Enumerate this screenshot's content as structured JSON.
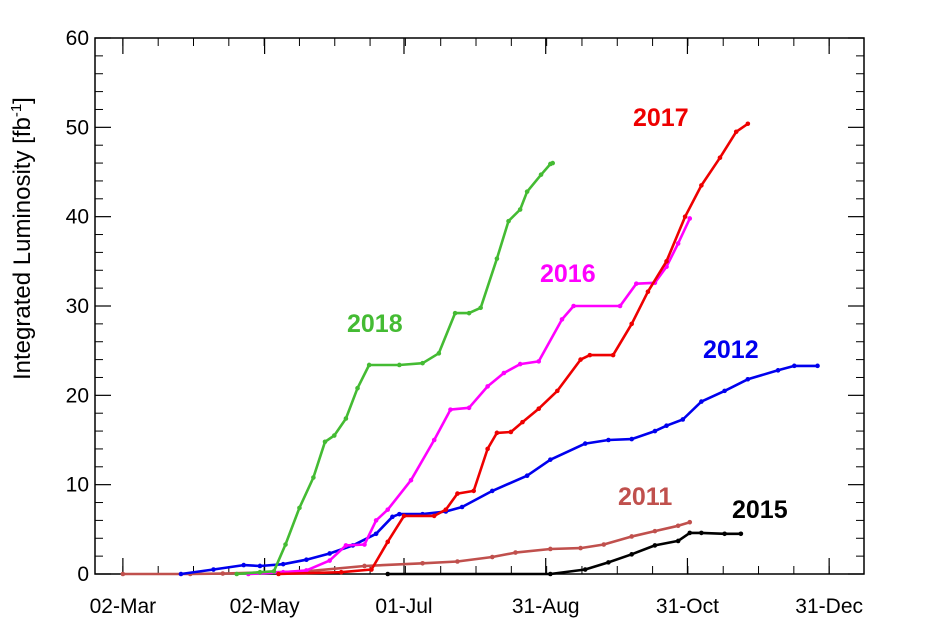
{
  "chart_data": {
    "type": "line",
    "title": "",
    "xlabel": "",
    "ylabel": "Integrated Luminosity [fb",
    "ylabel_sup": "-1",
    "ylabel_close": "]",
    "x_unit": "day of year",
    "xlim": [
      49,
      380
    ],
    "ylim": [
      0,
      60
    ],
    "y_ticks": [
      0,
      10,
      20,
      30,
      40,
      50,
      60
    ],
    "x_ticks": [
      {
        "day": 61,
        "label": "02-Mar"
      },
      {
        "day": 122,
        "label": "02-May"
      },
      {
        "day": 182,
        "label": "01-Jul"
      },
      {
        "day": 243,
        "label": "31-Aug"
      },
      {
        "day": 304,
        "label": "31-Oct"
      },
      {
        "day": 365,
        "label": "31-Dec"
      }
    ],
    "grid": false,
    "legend": "inline labels",
    "series": [
      {
        "name": "2011",
        "color": "#c0504d",
        "points": [
          [
            61,
            0.0
          ],
          [
            90,
            0.0
          ],
          [
            104,
            0.05
          ],
          [
            140,
            0.3
          ],
          [
            165,
            0.9
          ],
          [
            190,
            1.2
          ],
          [
            205,
            1.4
          ],
          [
            220,
            1.9
          ],
          [
            230,
            2.4
          ],
          [
            245,
            2.8
          ],
          [
            258,
            2.9
          ],
          [
            268,
            3.3
          ],
          [
            280,
            4.2
          ],
          [
            290,
            4.8
          ],
          [
            300,
            5.4
          ],
          [
            305,
            5.8
          ]
        ]
      },
      {
        "name": "2012",
        "color": "#0000ee",
        "points": [
          [
            86,
            0.0
          ],
          [
            100,
            0.5
          ],
          [
            113,
            1.0
          ],
          [
            120,
            0.9
          ],
          [
            130,
            1.1
          ],
          [
            140,
            1.6
          ],
          [
            150,
            2.3
          ],
          [
            160,
            3.2
          ],
          [
            170,
            4.5
          ],
          [
            177,
            6.4
          ],
          [
            180,
            6.7
          ],
          [
            190,
            6.7
          ],
          [
            200,
            7.0
          ],
          [
            207,
            7.5
          ],
          [
            220,
            9.3
          ],
          [
            235,
            11.0
          ],
          [
            245,
            12.8
          ],
          [
            260,
            14.6
          ],
          [
            270,
            15.0
          ],
          [
            280,
            15.1
          ],
          [
            290,
            16.0
          ],
          [
            295,
            16.6
          ],
          [
            302,
            17.3
          ],
          [
            310,
            19.3
          ],
          [
            320,
            20.5
          ],
          [
            330,
            21.8
          ],
          [
            343,
            22.8
          ],
          [
            350,
            23.3
          ],
          [
            360,
            23.3
          ]
        ]
      },
      {
        "name": "2015",
        "color": "#000000",
        "points": [
          [
            175,
            0.0
          ],
          [
            245,
            0.0
          ],
          [
            260,
            0.5
          ],
          [
            270,
            1.3
          ],
          [
            280,
            2.2
          ],
          [
            290,
            3.2
          ],
          [
            300,
            3.7
          ],
          [
            305,
            4.6
          ],
          [
            310,
            4.6
          ],
          [
            320,
            4.5
          ],
          [
            327,
            4.5
          ]
        ]
      },
      {
        "name": "2016",
        "color": "#ff00ff",
        "points": [
          [
            115,
            0.0
          ],
          [
            130,
            0.2
          ],
          [
            140,
            0.4
          ],
          [
            150,
            1.5
          ],
          [
            157,
            3.2
          ],
          [
            165,
            3.3
          ],
          [
            170,
            6.0
          ],
          [
            175,
            7.2
          ],
          [
            185,
            10.5
          ],
          [
            195,
            15.0
          ],
          [
            202,
            18.4
          ],
          [
            210,
            18.6
          ],
          [
            218,
            21.0
          ],
          [
            225,
            22.5
          ],
          [
            232,
            23.5
          ],
          [
            240,
            23.8
          ],
          [
            250,
            28.5
          ],
          [
            255,
            30.0
          ],
          [
            275,
            30.0
          ],
          [
            282,
            32.5
          ],
          [
            290,
            32.6
          ],
          [
            295,
            34.4
          ],
          [
            300,
            37.0
          ],
          [
            305,
            39.8
          ]
        ]
      },
      {
        "name": "2017",
        "color": "#ee0000",
        "points": [
          [
            128,
            0.0
          ],
          [
            155,
            0.2
          ],
          [
            168,
            0.5
          ],
          [
            175,
            3.6
          ],
          [
            182,
            6.5
          ],
          [
            195,
            6.5
          ],
          [
            200,
            7.2
          ],
          [
            205,
            9.0
          ],
          [
            212,
            9.3
          ],
          [
            218,
            14.0
          ],
          [
            222,
            15.8
          ],
          [
            228,
            15.9
          ],
          [
            233,
            17.0
          ],
          [
            240,
            18.5
          ],
          [
            248,
            20.5
          ],
          [
            258,
            24.0
          ],
          [
            262,
            24.5
          ],
          [
            272,
            24.5
          ],
          [
            280,
            28.0
          ],
          [
            287,
            31.6
          ],
          [
            295,
            35.0
          ],
          [
            303,
            40.0
          ],
          [
            310,
            43.5
          ],
          [
            318,
            46.6
          ],
          [
            325,
            49.5
          ],
          [
            330,
            50.4
          ]
        ]
      },
      {
        "name": "2018",
        "color": "#44bb33",
        "points": [
          [
            110,
            0.0
          ],
          [
            120,
            0.2
          ],
          [
            126,
            0.3
          ],
          [
            131,
            3.3
          ],
          [
            137,
            7.4
          ],
          [
            143,
            10.8
          ],
          [
            148,
            14.8
          ],
          [
            152,
            15.5
          ],
          [
            157,
            17.4
          ],
          [
            162,
            20.8
          ],
          [
            167,
            23.4
          ],
          [
            180,
            23.4
          ],
          [
            190,
            23.6
          ],
          [
            197,
            24.7
          ],
          [
            204,
            29.2
          ],
          [
            210,
            29.2
          ],
          [
            215,
            29.8
          ],
          [
            222,
            35.3
          ],
          [
            227,
            39.5
          ],
          [
            232,
            40.8
          ],
          [
            235,
            42.8
          ],
          [
            241,
            44.7
          ],
          [
            245,
            45.9
          ],
          [
            246,
            46.0
          ]
        ]
      }
    ]
  }
}
